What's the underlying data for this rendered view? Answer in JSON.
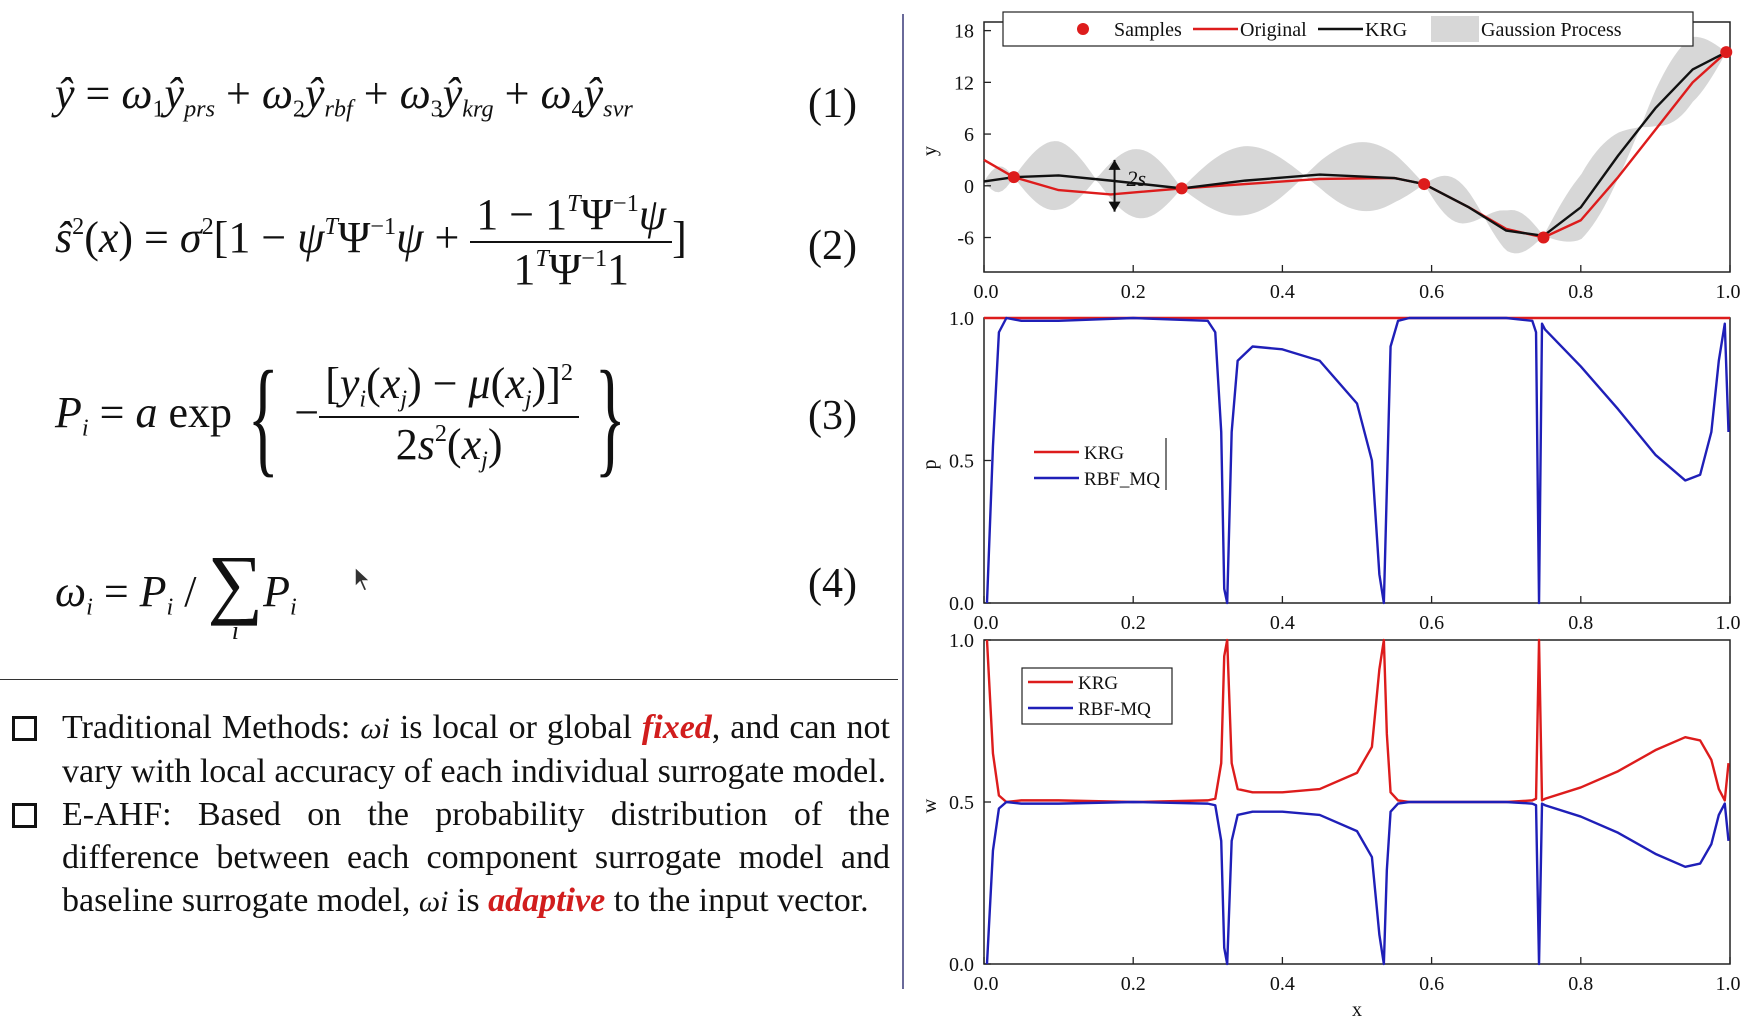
{
  "equations": [
    {
      "number": "(1)"
    },
    {
      "number": "(2)"
    },
    {
      "number": "(3)"
    },
    {
      "number": "(4)"
    }
  ],
  "bullets": [
    {
      "lead": "Traditional Methods: ",
      "symbol": "ωi",
      "mid": " is local or global ",
      "emph": "fixed",
      "tail": ", and can not vary with local accuracy of each individual surrogate model."
    },
    {
      "lead": "E-AHF: Based on the probability distribution of the difference between each component surrogate model and baseline surrogate model, ",
      "symbol": "ωi",
      "mid": " is ",
      "emph": "adaptive",
      "tail": " to the input vector."
    }
  ],
  "colors": {
    "red": "#dd1c1c",
    "blue": "#1f1fb8",
    "black": "#111111",
    "band": "#d7d7d7",
    "emph": "#d11d1d"
  },
  "chart_data": [
    {
      "type": "line",
      "ylabel": "y",
      "xlim": [
        0,
        1
      ],
      "ylim": [
        -10,
        19
      ],
      "xticks": [
        "0.0",
        "0.2",
        "0.4",
        "0.6",
        "0.8",
        "1.0"
      ],
      "yticks": [
        "18",
        "12",
        "6",
        "0",
        "-6"
      ],
      "ytick_values": [
        18,
        12,
        6,
        0,
        -6
      ],
      "legend": [
        "Samples",
        "Original",
        "KRG",
        "Gaussion Process"
      ],
      "annotation": "2s",
      "samples": {
        "x": [
          0.04,
          0.265,
          0.59,
          0.75,
          0.995
        ],
        "y": [
          1,
          -0.3,
          0.2,
          -6,
          15.5
        ]
      },
      "series": [
        {
          "name": "Original",
          "x": [
            0,
            0.04,
            0.1,
            0.17,
            0.265,
            0.35,
            0.45,
            0.55,
            0.59,
            0.65,
            0.7,
            0.75,
            0.8,
            0.85,
            0.9,
            0.95,
            0.995
          ],
          "y": [
            3,
            1,
            -0.5,
            -1,
            -0.3,
            0.2,
            0.8,
            0.9,
            0.2,
            -2.5,
            -5,
            -6,
            -4,
            1,
            6.5,
            12,
            15.5
          ]
        },
        {
          "name": "KRG",
          "x": [
            0,
            0.04,
            0.1,
            0.17,
            0.265,
            0.35,
            0.45,
            0.55,
            0.59,
            0.65,
            0.7,
            0.75,
            0.8,
            0.85,
            0.9,
            0.95,
            0.995
          ],
          "y": [
            0.5,
            1,
            1.2,
            0.6,
            -0.3,
            0.6,
            1.3,
            0.9,
            0.2,
            -2.5,
            -5.2,
            -5.8,
            -2.5,
            3.5,
            9,
            13.5,
            15.5
          ]
        }
      ],
      "gp_band": {
        "x": [
          0,
          0.04,
          0.15,
          0.265,
          0.43,
          0.59,
          0.67,
          0.75,
          0.88,
          0.995
        ],
        "half_width": [
          1.5,
          0,
          4,
          0,
          4,
          0,
          2.5,
          0,
          4,
          0
        ]
      }
    },
    {
      "type": "line",
      "ylabel": "p",
      "xlim": [
        0,
        1
      ],
      "ylim": [
        0,
        1
      ],
      "xticks": [
        "0.0",
        "0.2",
        "0.4",
        "0.6",
        "0.8",
        "1.0"
      ],
      "yticks": [
        "1.0",
        "0.5",
        "0.0"
      ],
      "ytick_values": [
        1,
        0.5,
        0
      ],
      "legend": [
        "KRG",
        "RBF_MQ"
      ],
      "series": [
        {
          "name": "KRG",
          "x": [
            0,
            1
          ],
          "y": [
            1,
            1
          ]
        },
        {
          "name": "RBF_MQ",
          "x": [
            0.004,
            0.012,
            0.02,
            0.03,
            0.05,
            0.1,
            0.2,
            0.3,
            0.31,
            0.318,
            0.322,
            0.326,
            0.332,
            0.34,
            0.36,
            0.4,
            0.45,
            0.5,
            0.52,
            0.53,
            0.536,
            0.54,
            0.545,
            0.555,
            0.57,
            0.6,
            0.7,
            0.735,
            0.74,
            0.744,
            0.748,
            0.752,
            0.8,
            0.85,
            0.9,
            0.94,
            0.96,
            0.975,
            0.985,
            0.993,
            0.998
          ],
          "y": [
            0,
            0.55,
            0.95,
            1,
            0.99,
            0.99,
            1,
            0.99,
            0.95,
            0.6,
            0.05,
            0,
            0.6,
            0.85,
            0.9,
            0.89,
            0.85,
            0.7,
            0.5,
            0.1,
            0,
            0.4,
            0.9,
            0.99,
            1,
            1,
            1,
            0.99,
            0.95,
            0,
            0.98,
            0.96,
            0.83,
            0.68,
            0.52,
            0.43,
            0.45,
            0.6,
            0.85,
            0.98,
            0.6
          ]
        }
      ]
    },
    {
      "type": "line",
      "xlabel": "x",
      "ylabel": "w",
      "xlim": [
        0,
        1
      ],
      "ylim": [
        0,
        1
      ],
      "xticks": [
        "0.0",
        "0.2",
        "0.4",
        "0.6",
        "0.8",
        "1.0"
      ],
      "yticks": [
        "1.0",
        "0.5",
        "0.0"
      ],
      "ytick_values": [
        1,
        0.5,
        0
      ],
      "legend": [
        "KRG",
        "RBF-MQ"
      ],
      "series": [
        {
          "name": "KRG",
          "x": [
            0.004,
            0.012,
            0.02,
            0.03,
            0.05,
            0.1,
            0.2,
            0.3,
            0.31,
            0.318,
            0.322,
            0.326,
            0.332,
            0.34,
            0.36,
            0.4,
            0.45,
            0.5,
            0.52,
            0.53,
            0.536,
            0.54,
            0.545,
            0.555,
            0.57,
            0.6,
            0.7,
            0.735,
            0.74,
            0.744,
            0.748,
            0.752,
            0.8,
            0.85,
            0.9,
            0.94,
            0.96,
            0.975,
            0.985,
            0.993,
            0.998
          ],
          "y": [
            1,
            0.65,
            0.52,
            0.5,
            0.505,
            0.505,
            0.5,
            0.505,
            0.51,
            0.62,
            0.95,
            1,
            0.62,
            0.54,
            0.53,
            0.53,
            0.54,
            0.59,
            0.67,
            0.91,
            1,
            0.71,
            0.53,
            0.505,
            0.5,
            0.5,
            0.5,
            0.505,
            0.51,
            1,
            0.505,
            0.51,
            0.545,
            0.595,
            0.66,
            0.7,
            0.69,
            0.63,
            0.54,
            0.505,
            0.62
          ]
        },
        {
          "name": "RBF-MQ",
          "x": [
            0.004,
            0.012,
            0.02,
            0.03,
            0.05,
            0.1,
            0.2,
            0.3,
            0.31,
            0.318,
            0.322,
            0.326,
            0.332,
            0.34,
            0.36,
            0.4,
            0.45,
            0.5,
            0.52,
            0.53,
            0.536,
            0.54,
            0.545,
            0.555,
            0.57,
            0.6,
            0.7,
            0.735,
            0.74,
            0.744,
            0.748,
            0.752,
            0.8,
            0.85,
            0.9,
            0.94,
            0.96,
            0.975,
            0.985,
            0.993,
            0.998
          ],
          "y": [
            0,
            0.35,
            0.48,
            0.5,
            0.495,
            0.495,
            0.5,
            0.495,
            0.49,
            0.38,
            0.05,
            0,
            0.38,
            0.46,
            0.47,
            0.47,
            0.46,
            0.41,
            0.33,
            0.09,
            0,
            0.29,
            0.47,
            0.495,
            0.5,
            0.5,
            0.5,
            0.495,
            0.49,
            0,
            0.495,
            0.49,
            0.455,
            0.405,
            0.34,
            0.3,
            0.31,
            0.37,
            0.46,
            0.495,
            0.38
          ]
        }
      ]
    }
  ]
}
